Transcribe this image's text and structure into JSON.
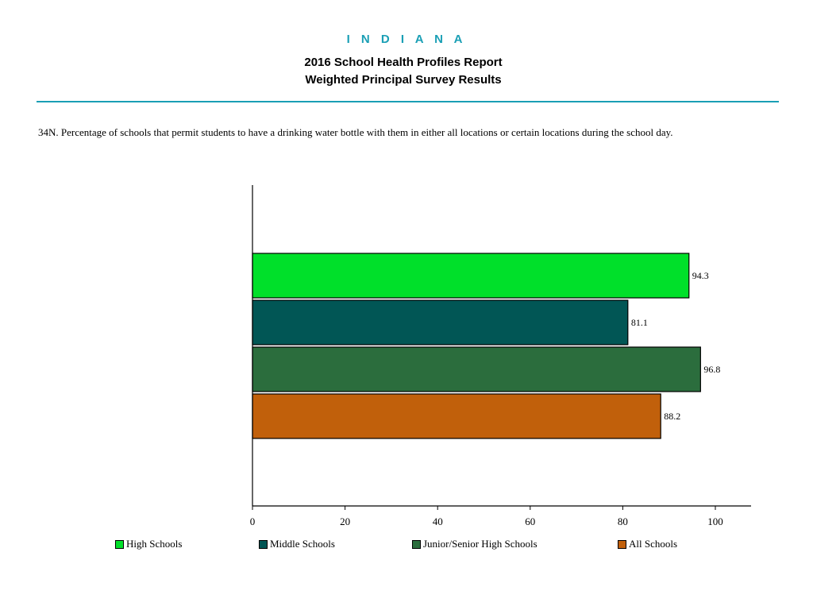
{
  "header": {
    "state": "I N D I A N A",
    "title_line1": "2016 School Health Profiles Report",
    "title_line2": "Weighted Principal Survey Results"
  },
  "question": "34N.  Percentage of schools that permit students to have a drinking water bottle with them in either all locations or certain locations during the school day.",
  "chart_data": {
    "type": "bar",
    "orientation": "horizontal",
    "series": [
      {
        "name": "High Schools",
        "value": 94.3,
        "label": "94.3",
        "color": "#00e02a"
      },
      {
        "name": "Middle Schools",
        "value": 81.1,
        "label": "81.1",
        "color": "#015655"
      },
      {
        "name": "Junior/Senior High Schools",
        "value": 96.8,
        "label": "96.8",
        "color": "#2b6d3d"
      },
      {
        "name": "All Schools",
        "value": 88.2,
        "label": "88.2",
        "color": "#c1600b"
      }
    ],
    "xlim": [
      0,
      100
    ],
    "xticks": [
      "0",
      "20",
      "40",
      "60",
      "80",
      "100"
    ],
    "grid": false,
    "legend_position": "bottom"
  }
}
